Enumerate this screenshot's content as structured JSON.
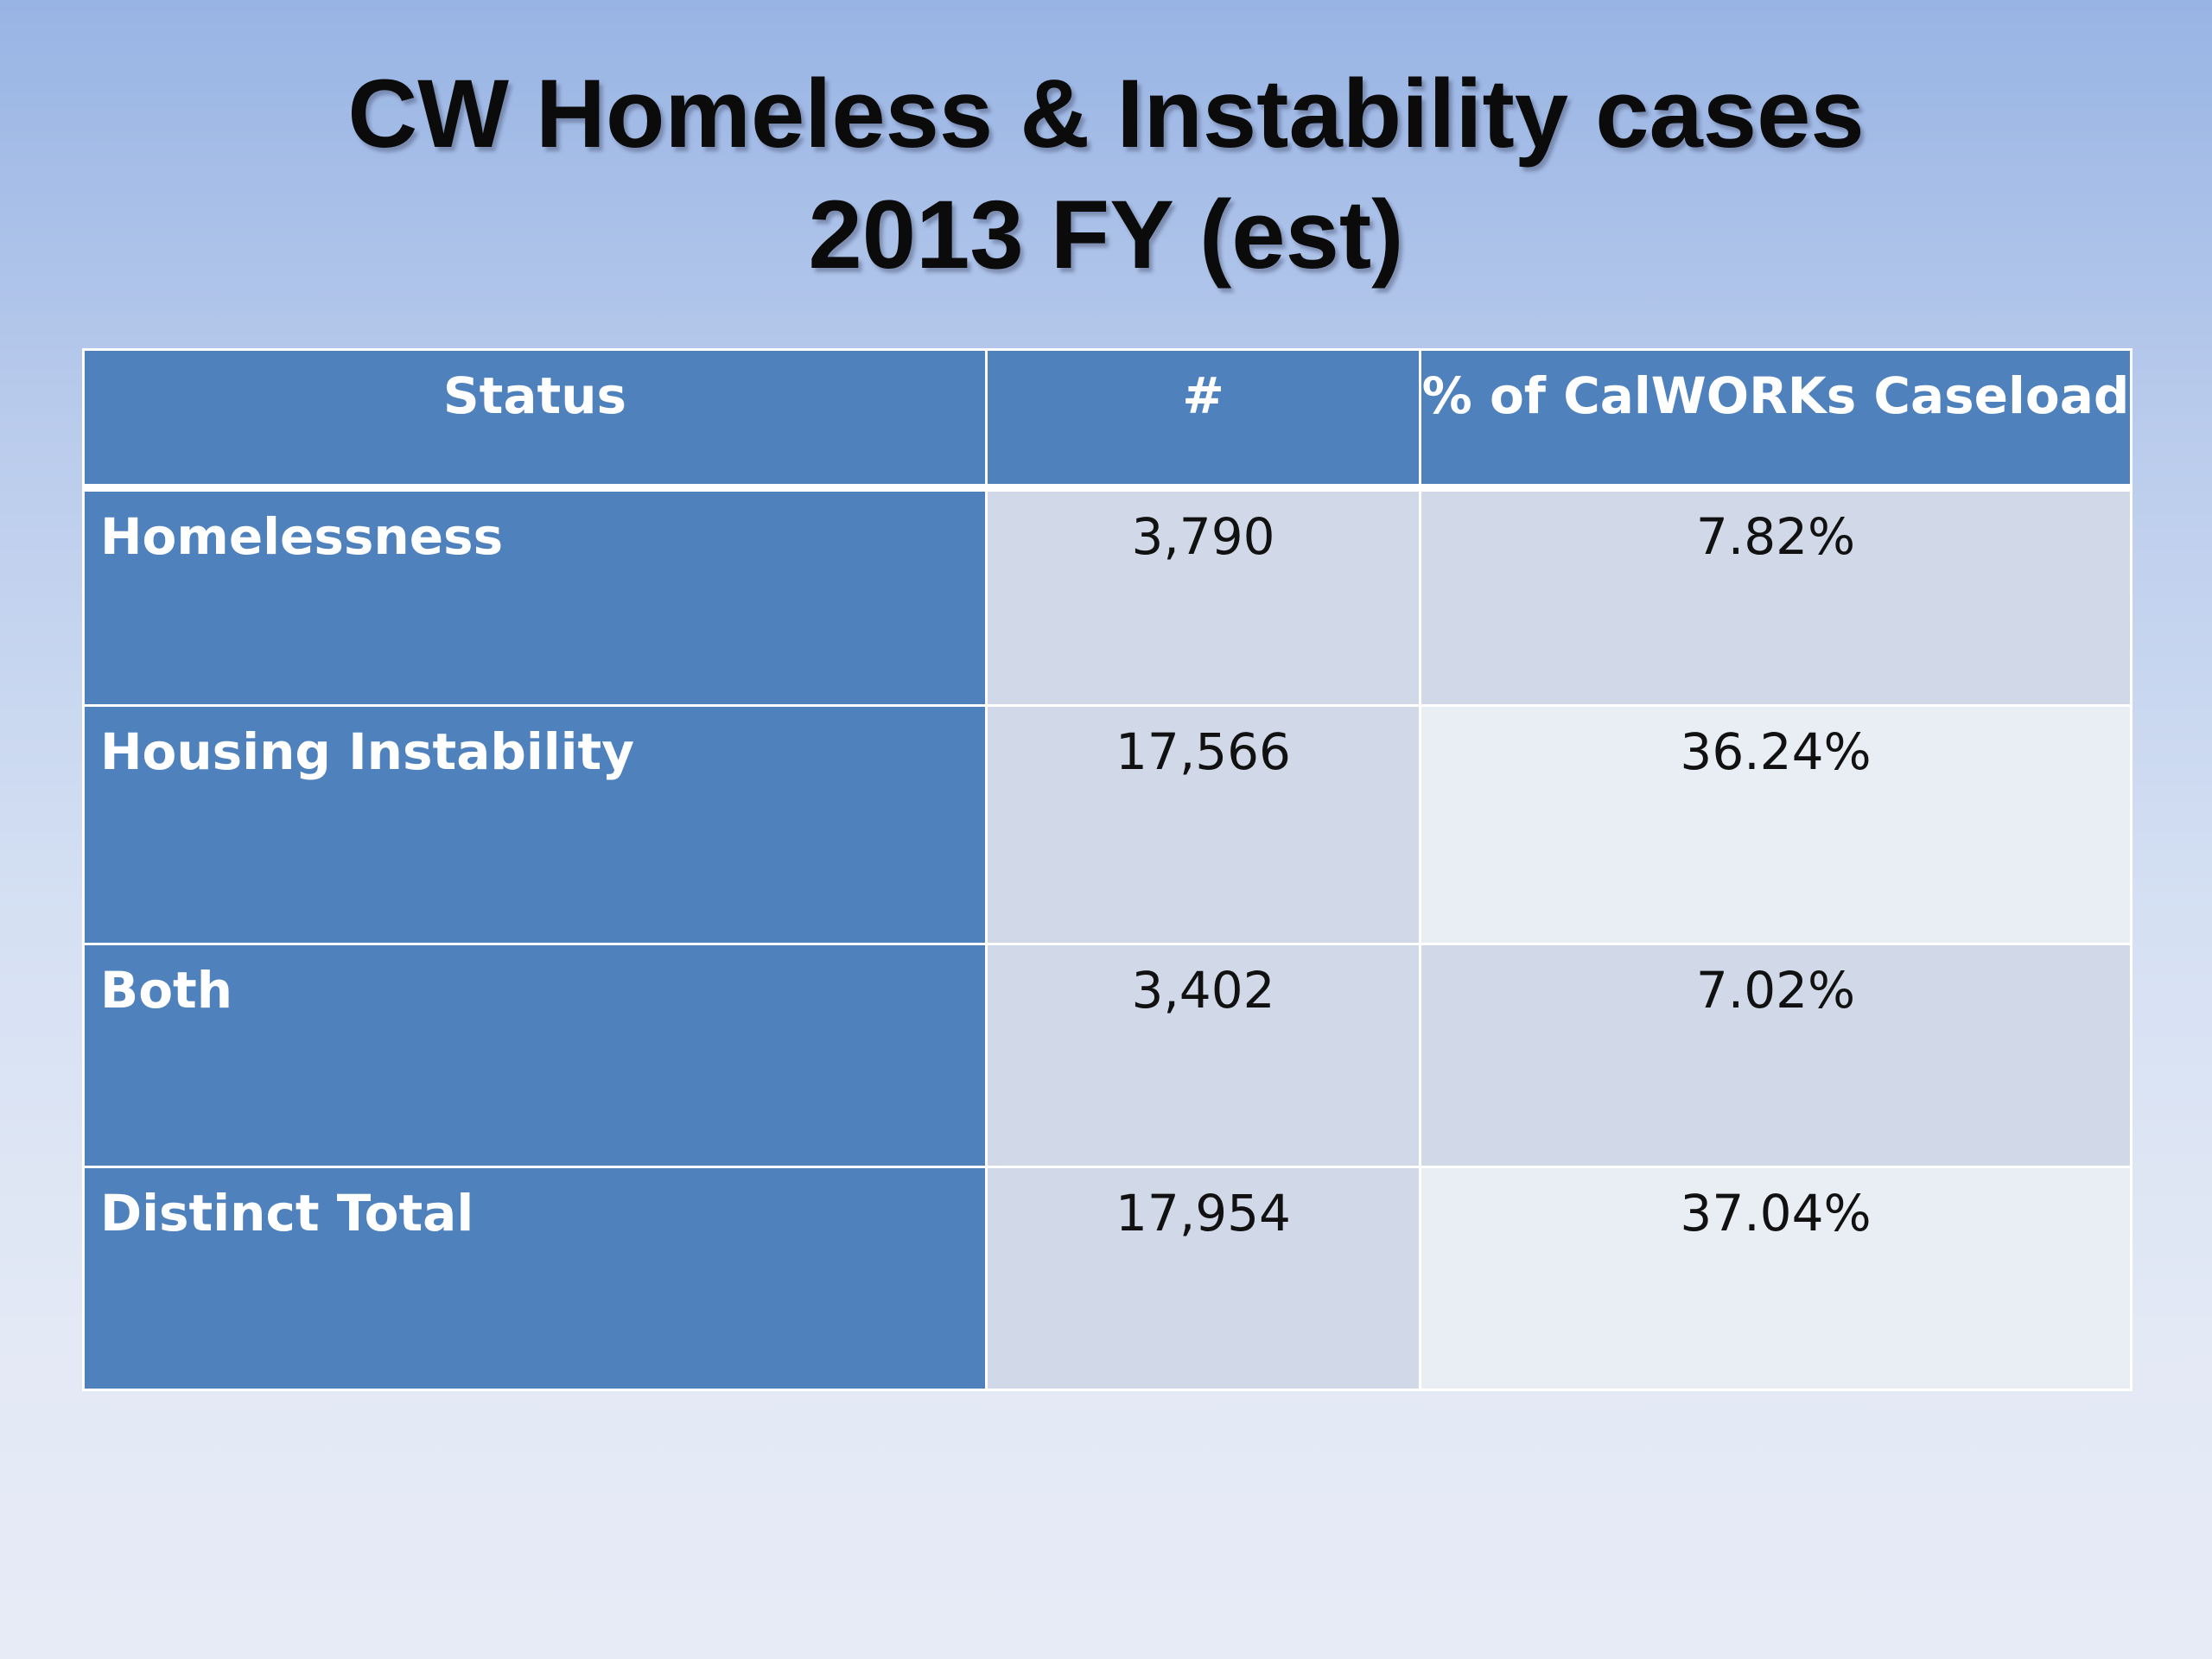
{
  "slide": {
    "title_line1": "CW Homeless & Instability cases",
    "title_line2": "2013 FY (est)"
  },
  "table": {
    "headers": {
      "status": "Status",
      "count": "#",
      "percent": "% of CalWORKs Caseload"
    },
    "rows": [
      {
        "status": "Homelessness",
        "count": "3,790",
        "percent": "7.82%"
      },
      {
        "status": "Housing Instability",
        "count": "17,566",
        "percent": "36.24%"
      },
      {
        "status": "Both",
        "count": "3,402",
        "percent": "7.02%"
      },
      {
        "status": "Distinct Total",
        "count": "17,954",
        "percent": "37.04%"
      }
    ]
  },
  "colors": {
    "header_fill": "#4f81bd",
    "band_dark": "#d1d9e8",
    "band_light": "#e9edf4",
    "title_text": "#0b0b0b"
  }
}
